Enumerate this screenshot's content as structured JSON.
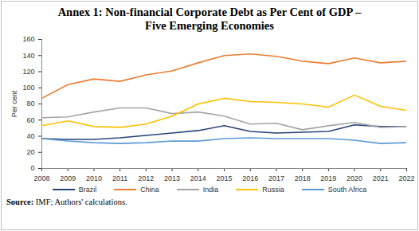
{
  "chart_data": {
    "type": "line",
    "title": "Annex 1: Non-financial Corporate Debt as Per Cent of GDP – Five Emerging Economies",
    "y_label": "Per cent",
    "source": "Source: IMF; Authors' calculations.",
    "x": [
      2008,
      2009,
      2010,
      2011,
      2012,
      2013,
      2014,
      2015,
      2016,
      2017,
      2018,
      2019,
      2020,
      2021,
      2022
    ],
    "xlim": [
      2008,
      2022
    ],
    "xticks": [
      2008,
      2009,
      2010,
      2011,
      2012,
      2013,
      2014,
      2015,
      2016,
      2017,
      2018,
      2019,
      2020,
      2021,
      2022
    ],
    "ylim": [
      0,
      160
    ],
    "yticks": [
      0,
      20,
      40,
      60,
      80,
      100,
      120,
      140,
      160
    ],
    "grid": false,
    "legend": "bottom",
    "series": [
      {
        "name": "Brazil",
        "color": "#264478",
        "values": [
          37,
          36,
          36,
          38,
          41,
          44,
          47,
          53,
          46,
          44,
          45,
          46,
          54,
          52,
          52
        ]
      },
      {
        "name": "China",
        "color": "#ed7d31",
        "values": [
          87,
          104,
          111,
          108,
          116,
          121,
          131,
          140,
          142,
          139,
          133,
          130,
          137,
          131,
          133
        ]
      },
      {
        "name": "India",
        "color": "#a5a5a5",
        "values": [
          63,
          64,
          70,
          75,
          75,
          68,
          70,
          65,
          55,
          56,
          48,
          53,
          57,
          51,
          52
        ]
      },
      {
        "name": "Russia",
        "color": "#ffc000",
        "values": [
          53,
          59,
          52,
          51,
          55,
          65,
          80,
          87,
          83,
          82,
          80,
          76,
          91,
          77,
          72
        ]
      },
      {
        "name": "South Africa",
        "color": "#5b9bd5",
        "values": [
          37,
          34,
          32,
          31,
          32,
          34,
          34,
          37,
          38,
          37,
          37,
          37,
          35,
          31,
          32
        ]
      }
    ]
  }
}
